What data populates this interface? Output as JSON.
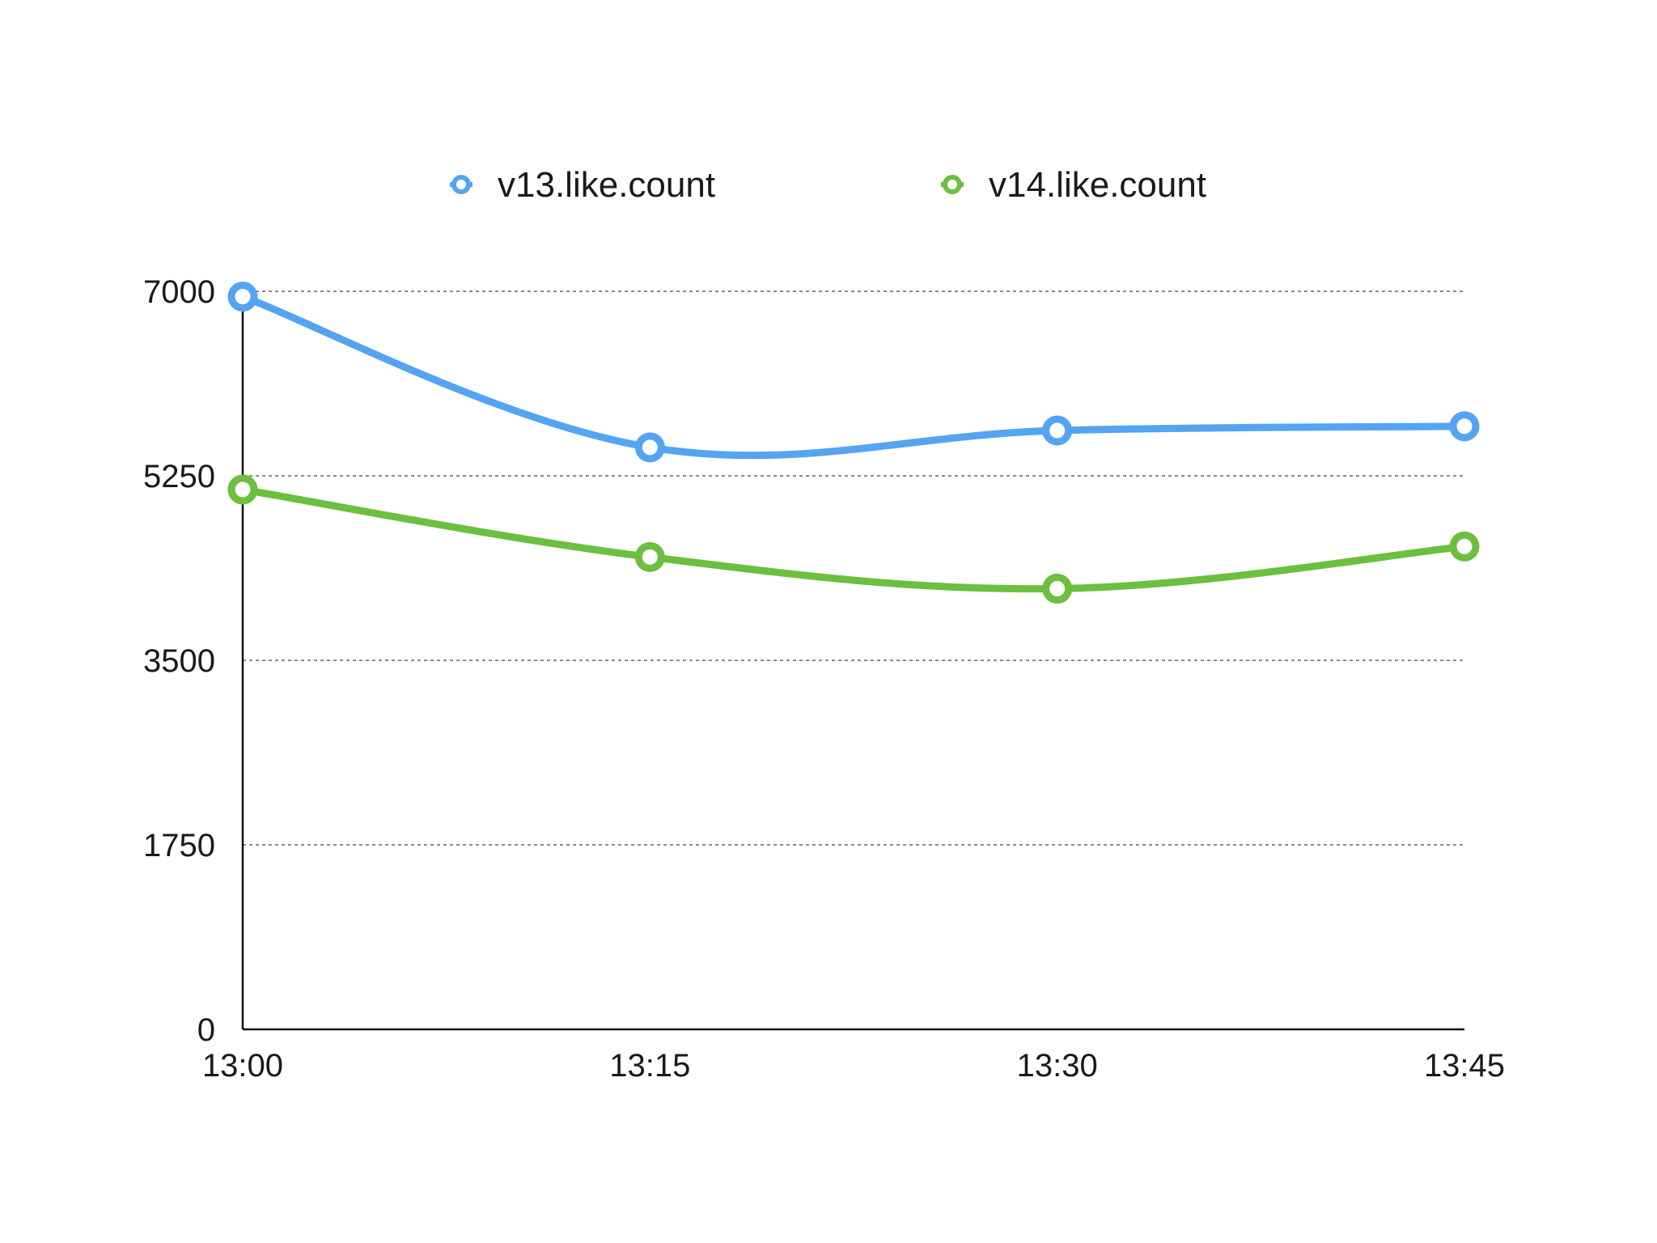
{
  "chart_data": {
    "type": "line",
    "title": "",
    "xlabel": "",
    "ylabel": "",
    "categories": [
      "13:00",
      "13:15",
      "13:30",
      "13:45"
    ],
    "ylim": [
      0,
      7000
    ],
    "yticks": [
      "0",
      "1750",
      "3500",
      "5250",
      "7000"
    ],
    "ytick_values": [
      0,
      1750,
      3500,
      5250,
      7000
    ],
    "grid": true,
    "smooth": true,
    "legend_position": "top-center",
    "series": [
      {
        "name": "v13.like.count",
        "values": [
          6950,
          5520,
          5680,
          5720
        ],
        "color": "#55A4F2"
      },
      {
        "name": "v14.like.count",
        "values": [
          5120,
          4480,
          4180,
          4580
        ],
        "color": "#6CBF3F"
      }
    ]
  }
}
